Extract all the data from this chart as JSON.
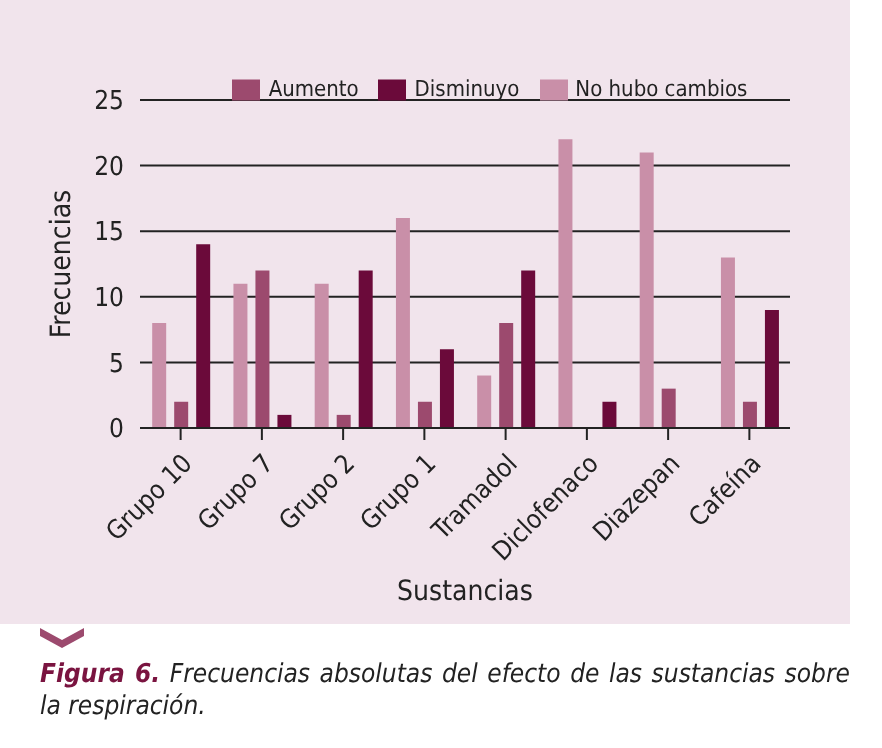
{
  "chart_data": {
    "type": "bar",
    "xlabel": "Sustancias",
    "ylabel": "Frecuencias",
    "categories": [
      "Grupo 10",
      "Grupo 7",
      "Grupo 2",
      "Grupo 1",
      "Tramadol",
      "Diclofenaco",
      "Diazepan",
      "Cafeína"
    ],
    "series": [
      {
        "name": "No hubo cambios",
        "color": "#c98fa8",
        "values": [
          8,
          11,
          11,
          16,
          4,
          22,
          21,
          13
        ]
      },
      {
        "name": "Aumento",
        "color": "#9c4a6e",
        "values": [
          2,
          12,
          1,
          2,
          8,
          0,
          3,
          2
        ]
      },
      {
        "name": "Disminuyo",
        "color": "#6b0a3a",
        "values": [
          14,
          1,
          12,
          6,
          12,
          2,
          0,
          9
        ]
      }
    ],
    "ylim": [
      0,
      25
    ],
    "yticks": [
      0,
      5,
      10,
      15,
      20,
      25
    ],
    "grid": "y",
    "legend": "top",
    "annotations": [
      "Figura 6. Frecuencias absolutas del efecto de las sustancias sobre la respiración."
    ]
  }
}
